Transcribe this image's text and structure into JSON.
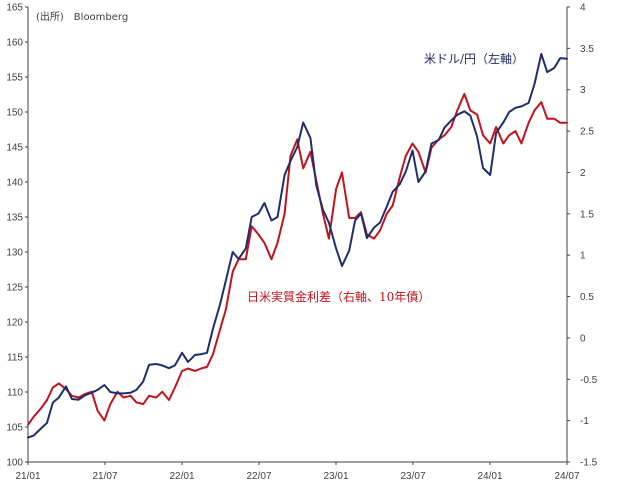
{
  "source": "(出所)　Bloomberg",
  "colors": {
    "usdjpy": "#1f2d6b",
    "real_rate_diff": "#c0141c",
    "axis": "#404040"
  },
  "chart_data": {
    "type": "line",
    "title": "",
    "x_ticks": [
      "21/01",
      "21/07",
      "22/01",
      "22/07",
      "23/01",
      "23/07",
      "24/01",
      "24/07"
    ],
    "x_range": [
      "2021-01",
      "2024-07"
    ],
    "left_axis": {
      "ylim": [
        100,
        165
      ],
      "ticks": [
        "100",
        "105",
        "110",
        "115",
        "120",
        "125",
        "130",
        "135",
        "140",
        "145",
        "150",
        "155",
        "160",
        "165"
      ]
    },
    "right_axis": {
      "ylim": [
        -1.5,
        4
      ],
      "ticks": [
        "-1.5",
        "-1",
        "-0.5",
        "0",
        "0.5",
        "1",
        "1.5",
        "2",
        "2.5",
        "3",
        "3.5",
        "4"
      ]
    },
    "series": [
      {
        "name": "米ドル/円（左軸）",
        "axis": "left",
        "x": [
          "2021-01-01",
          "2021-01-15",
          "2021-02-01",
          "2021-02-15",
          "2021-03-01",
          "2021-03-15",
          "2021-04-01",
          "2021-04-15",
          "2021-05-01",
          "2021-05-15",
          "2021-06-01",
          "2021-06-15",
          "2021-07-01",
          "2021-07-15",
          "2021-08-01",
          "2021-08-15",
          "2021-09-01",
          "2021-09-15",
          "2021-10-01",
          "2021-10-15",
          "2021-11-01",
          "2021-11-15",
          "2021-12-01",
          "2021-12-15",
          "2022-01-01",
          "2022-01-15",
          "2022-02-01",
          "2022-02-15",
          "2022-03-01",
          "2022-03-15",
          "2022-04-01",
          "2022-04-15",
          "2022-05-01",
          "2022-05-15",
          "2022-06-01",
          "2022-06-15",
          "2022-07-01",
          "2022-07-15",
          "2022-08-01",
          "2022-08-15",
          "2022-09-01",
          "2022-09-15",
          "2022-10-01",
          "2022-10-15",
          "2022-11-01",
          "2022-11-15",
          "2022-12-01",
          "2022-12-15",
          "2023-01-01",
          "2023-01-15",
          "2023-02-01",
          "2023-02-15",
          "2023-03-01",
          "2023-03-15",
          "2023-04-01",
          "2023-04-15",
          "2023-05-01",
          "2023-05-15",
          "2023-06-01",
          "2023-06-15",
          "2023-07-01",
          "2023-07-15",
          "2023-08-01",
          "2023-08-15",
          "2023-09-01",
          "2023-09-15",
          "2023-10-01",
          "2023-10-15",
          "2023-11-01",
          "2023-11-15",
          "2023-12-01",
          "2023-12-15",
          "2024-01-01",
          "2024-01-15",
          "2024-02-01",
          "2024-02-15",
          "2024-03-01",
          "2024-03-15",
          "2024-04-01",
          "2024-04-15",
          "2024-05-01",
          "2024-05-15",
          "2024-06-01",
          "2024-06-15",
          "2024-07-01"
        ],
        "y": [
          103.5,
          103.8,
          104.8,
          105.6,
          108.5,
          109.2,
          110.8,
          109.0,
          108.9,
          109.5,
          109.9,
          110.3,
          111.0,
          110.0,
          109.8,
          109.8,
          109.9,
          110.3,
          111.5,
          113.9,
          114.0,
          113.8,
          113.4,
          113.8,
          115.6,
          114.3,
          115.3,
          115.4,
          115.6,
          119.0,
          122.5,
          126.0,
          130.0,
          129.0,
          130.5,
          135.0,
          135.5,
          137.0,
          134.5,
          135.0,
          141.0,
          143.0,
          145.0,
          148.5,
          146.3,
          139.5,
          136.0,
          134.2,
          130.5,
          128.0,
          130.2,
          134.5,
          135.5,
          132.0,
          133.5,
          134.2,
          136.5,
          138.6,
          139.7,
          141.5,
          144.5,
          140.0,
          141.5,
          145.5,
          146.0,
          147.8,
          148.8,
          149.6,
          150.1,
          149.5,
          146.5,
          142.0,
          141.0,
          147.0,
          148.5,
          150.0,
          150.6,
          150.8,
          151.3,
          154.0,
          158.3,
          155.7,
          156.3,
          157.7,
          157.6
        ]
      },
      {
        "name": "日米実質金利差（右軸、10年債）",
        "axis": "right",
        "x": [
          "2021-01-01",
          "2021-01-15",
          "2021-02-01",
          "2021-02-15",
          "2021-03-01",
          "2021-03-15",
          "2021-04-01",
          "2021-04-15",
          "2021-05-01",
          "2021-05-15",
          "2021-06-01",
          "2021-06-15",
          "2021-07-01",
          "2021-07-15",
          "2021-08-01",
          "2021-08-15",
          "2021-09-01",
          "2021-09-15",
          "2021-10-01",
          "2021-10-15",
          "2021-11-01",
          "2021-11-15",
          "2021-12-01",
          "2021-12-15",
          "2022-01-01",
          "2022-01-15",
          "2022-02-01",
          "2022-02-15",
          "2022-03-01",
          "2022-03-15",
          "2022-04-01",
          "2022-04-15",
          "2022-05-01",
          "2022-05-15",
          "2022-06-01",
          "2022-06-15",
          "2022-07-01",
          "2022-07-15",
          "2022-08-01",
          "2022-08-15",
          "2022-09-01",
          "2022-09-15",
          "2022-10-01",
          "2022-10-15",
          "2022-11-01",
          "2022-11-15",
          "2022-12-01",
          "2022-12-15",
          "2023-01-01",
          "2023-01-15",
          "2023-02-01",
          "2023-02-15",
          "2023-03-01",
          "2023-03-15",
          "2023-04-01",
          "2023-04-15",
          "2023-05-01",
          "2023-05-15",
          "2023-06-01",
          "2023-06-15",
          "2023-07-01",
          "2023-07-15",
          "2023-08-01",
          "2023-08-15",
          "2023-09-01",
          "2023-09-15",
          "2023-10-01",
          "2023-10-15",
          "2023-11-01",
          "2023-11-15",
          "2023-12-01",
          "2023-12-15",
          "2024-01-01",
          "2024-01-15",
          "2024-02-01",
          "2024-02-15",
          "2024-03-01",
          "2024-03-15",
          "2024-04-01",
          "2024-04-15",
          "2024-05-01",
          "2024-05-15",
          "2024-06-01",
          "2024-06-15",
          "2024-07-01"
        ],
        "y": [
          -1.05,
          -0.95,
          -0.85,
          -0.75,
          -0.6,
          -0.55,
          -0.62,
          -0.7,
          -0.72,
          -0.68,
          -0.65,
          -0.88,
          -1.0,
          -0.8,
          -0.65,
          -0.72,
          -0.7,
          -0.78,
          -0.8,
          -0.7,
          -0.72,
          -0.65,
          -0.75,
          -0.6,
          -0.4,
          -0.37,
          -0.4,
          -0.37,
          -0.35,
          -0.2,
          0.1,
          0.35,
          0.8,
          0.95,
          0.95,
          1.35,
          1.25,
          1.15,
          0.95,
          1.15,
          1.5,
          2.2,
          2.4,
          2.05,
          2.25,
          1.9,
          1.5,
          1.2,
          1.8,
          2.0,
          1.45,
          1.45,
          1.52,
          1.25,
          1.2,
          1.3,
          1.5,
          1.6,
          1.95,
          2.2,
          2.35,
          2.25,
          2.0,
          2.3,
          2.4,
          2.45,
          2.55,
          2.75,
          2.95,
          2.75,
          2.7,
          2.45,
          2.35,
          2.55,
          2.35,
          2.45,
          2.5,
          2.35,
          2.6,
          2.75,
          2.85,
          2.65,
          2.65,
          2.6,
          2.6
        ]
      }
    ]
  }
}
